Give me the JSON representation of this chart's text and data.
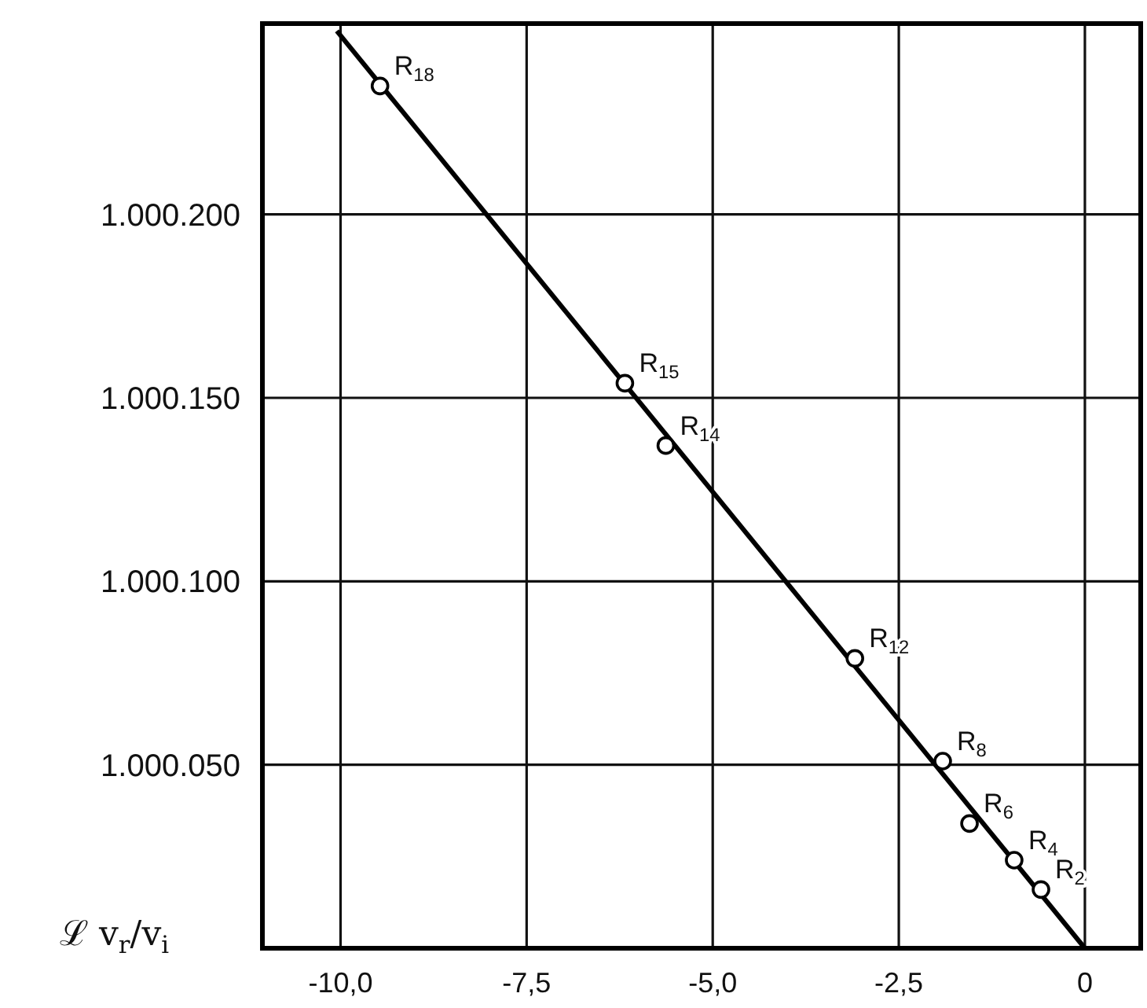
{
  "chart_data": {
    "type": "scatter",
    "ylabel": "ℒ v$_{r}$/v$_{i}$",
    "xlim": [
      -11.05,
      0.75
    ],
    "ylim": [
      1000000,
      1000252
    ],
    "xticks": [
      {
        "value": -10,
        "label": "-10,0"
      },
      {
        "value": -7.5,
        "label": "-7,5"
      },
      {
        "value": -5,
        "label": "-5,0"
      },
      {
        "value": -2.5,
        "label": "-2,5"
      },
      0
    ],
    "yticks": [
      {
        "value": 1000050,
        "label": "1.000.050"
      },
      {
        "value": 1000100,
        "label": "1.000.100"
      },
      {
        "value": 1000150,
        "label": "1.000.150"
      },
      {
        "value": 1000200,
        "label": "1.000.200"
      }
    ],
    "grid": true,
    "series": [
      {
        "type": "line",
        "color": "#000000",
        "marker": "none",
        "x": [
          -10.05,
          0
        ],
        "values": [
          1000250,
          1000000
        ]
      },
      {
        "color": "#000000",
        "marker": "circle",
        "x": [
          -9.47,
          -6.18,
          -5.63,
          -3.09,
          -1.91,
          -1.55,
          -0.95,
          -0.59
        ],
        "values": [
          1000235,
          1000154,
          1000137,
          1000079,
          1000051,
          1000034,
          1000024,
          1000016
        ]
      }
    ],
    "annotations": [
      {
        "text": "R$_{18}$",
        "x": -9.47,
        "y": 1000235
      },
      {
        "text": "R$_{15}$",
        "x": -6.18,
        "y": 1000154
      },
      {
        "text": "R$_{14}$",
        "x": -5.63,
        "y": 1000137
      },
      {
        "text": "R$_{12}$",
        "x": -3.09,
        "y": 1000079
      },
      {
        "text": "R$_{8}$",
        "x": -1.91,
        "y": 1000051
      },
      {
        "text": "R$_{6}$",
        "x": -1.55,
        "y": 1000034
      },
      {
        "text": "R$_{4}$",
        "x": -0.95,
        "y": 1000024
      },
      {
        "text": "R$_{2}$",
        "x": -0.59,
        "y": 1000016
      }
    ]
  }
}
